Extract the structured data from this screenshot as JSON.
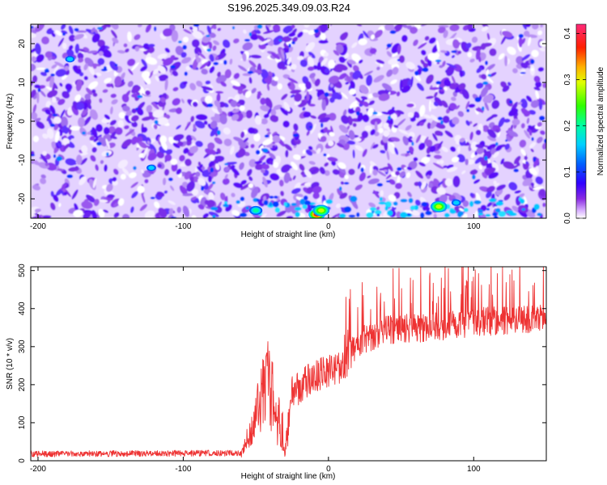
{
  "title": "S196.2025.349.09.03.R24",
  "chart_data": [
    {
      "type": "heatmap",
      "xlabel": "Height of straight line (km)",
      "ylabel": "Frequency (Hz)",
      "xlim": [
        -205,
        150
      ],
      "ylim": [
        -25,
        25
      ],
      "x_ticks": [
        -200,
        -100,
        0,
        100
      ],
      "y_ticks": [
        -20,
        -10,
        0,
        10,
        20
      ],
      "colorbar": {
        "label": "Normalized spectral amplitude",
        "range": [
          0,
          0.42
        ],
        "ticks": [
          "0.0",
          "0.1",
          "0.2",
          "0.3",
          "0.4"
        ],
        "colormap": [
          "#ffffff",
          "#8a2be2",
          "#5a00ff",
          "#0000ff",
          "#00bfff",
          "#00ffa0",
          "#00ff00",
          "#c8ff00",
          "#ffff00",
          "#ff8000",
          "#ff0000",
          "#ff2a7a"
        ]
      },
      "hotspots": [
        {
          "x": -8,
          "y": -24,
          "value": 0.38
        },
        {
          "x": -5,
          "y": -23,
          "value": 0.22
        },
        {
          "x": 76,
          "y": -22,
          "value": 0.24
        },
        {
          "x": -50,
          "y": -23,
          "value": 0.14
        },
        {
          "x": 88,
          "y": -21,
          "value": 0.12
        },
        {
          "x": -122,
          "y": -12,
          "value": 0.1
        },
        {
          "x": -178,
          "y": 16,
          "value": 0.1
        }
      ]
    },
    {
      "type": "line",
      "xlabel": "Height of straight line (km)",
      "ylabel": "SNR (10 * v/v)",
      "xlim": [
        -205,
        150
      ],
      "ylim": [
        0,
        510
      ],
      "x_ticks": [
        -200,
        -100,
        0,
        100
      ],
      "y_ticks": [
        0,
        100,
        200,
        300,
        400,
        500
      ],
      "color": "#ee3333",
      "profile": [
        {
          "x": -205,
          "y": 18
        },
        {
          "x": -60,
          "y": 20
        },
        {
          "x": -52,
          "y": 90
        },
        {
          "x": -42,
          "y": 220
        },
        {
          "x": -36,
          "y": 100
        },
        {
          "x": -30,
          "y": 20
        },
        {
          "x": -25,
          "y": 180
        },
        {
          "x": -10,
          "y": 220
        },
        {
          "x": 10,
          "y": 250
        },
        {
          "x": 20,
          "y": 310
        },
        {
          "x": 40,
          "y": 345
        },
        {
          "x": 70,
          "y": 350
        },
        {
          "x": 100,
          "y": 365
        },
        {
          "x": 150,
          "y": 375
        }
      ]
    }
  ]
}
